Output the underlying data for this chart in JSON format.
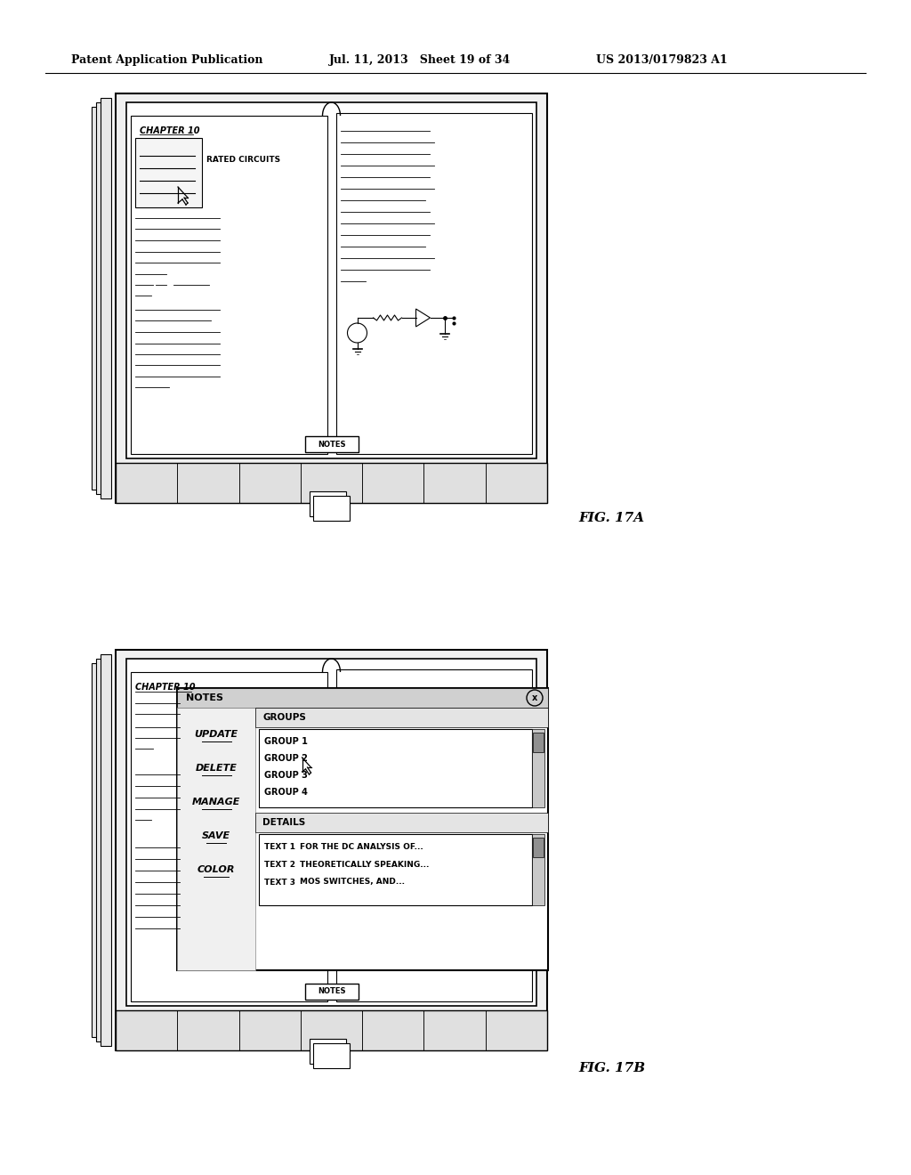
{
  "background_color": "#ffffff",
  "header_left": "Patent Application Publication",
  "header_mid": "Jul. 11, 2013   Sheet 19 of 34",
  "header_right": "US 2013/0179823 A1",
  "fig17a_label": "FIG. 17A",
  "fig17b_label": "FIG. 17B",
  "chapter_text": "CHAPTER 10",
  "rated_circuits": "RATED CIRCUITS",
  "notes_button": "NOTES",
  "notes_title": "NOTES",
  "groups_label": "GROUPS",
  "groups_items": [
    "GROUP 1",
    "GROUP 2",
    "GROUP 3",
    "GROUP 4"
  ],
  "details_label": "DETAILS",
  "details_items": [
    [
      "TEXT 1",
      "FOR THE DC ANALYSIS OF..."
    ],
    [
      "TEXT 2",
      "THEORETICALLY SPEAKING..."
    ],
    [
      "TEXT 3",
      "MOS SWITCHES, AND..."
    ]
  ],
  "menu_items": [
    "UPDATE",
    "DELETE",
    "MANAGE",
    "SAVE",
    "COLOR"
  ]
}
